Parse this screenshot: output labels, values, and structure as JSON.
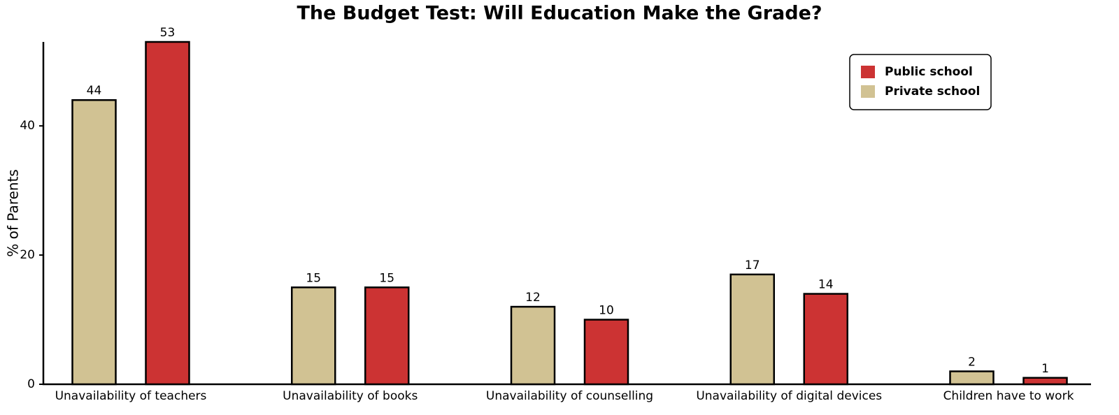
{
  "chart_data": {
    "type": "bar",
    "title": "The Budget Test: Will Education Make the Grade?",
    "y_label": "% of Parents",
    "categories": [
      "Unavailability of teachers",
      "Unavailability of books",
      "Unavailability of counselling",
      "Unavailability of digital devices",
      "Children have to work"
    ],
    "series": [
      {
        "name": "Private school",
        "color": "#d1c293",
        "values": [
          44,
          15,
          12,
          17,
          2
        ]
      },
      {
        "name": "Public school",
        "color": "#cc3333",
        "values": [
          53,
          15,
          10,
          14,
          1
        ]
      }
    ],
    "ylim": [
      0,
      53
    ],
    "yticks": [
      0,
      20,
      40
    ],
    "legend": "upper right"
  }
}
